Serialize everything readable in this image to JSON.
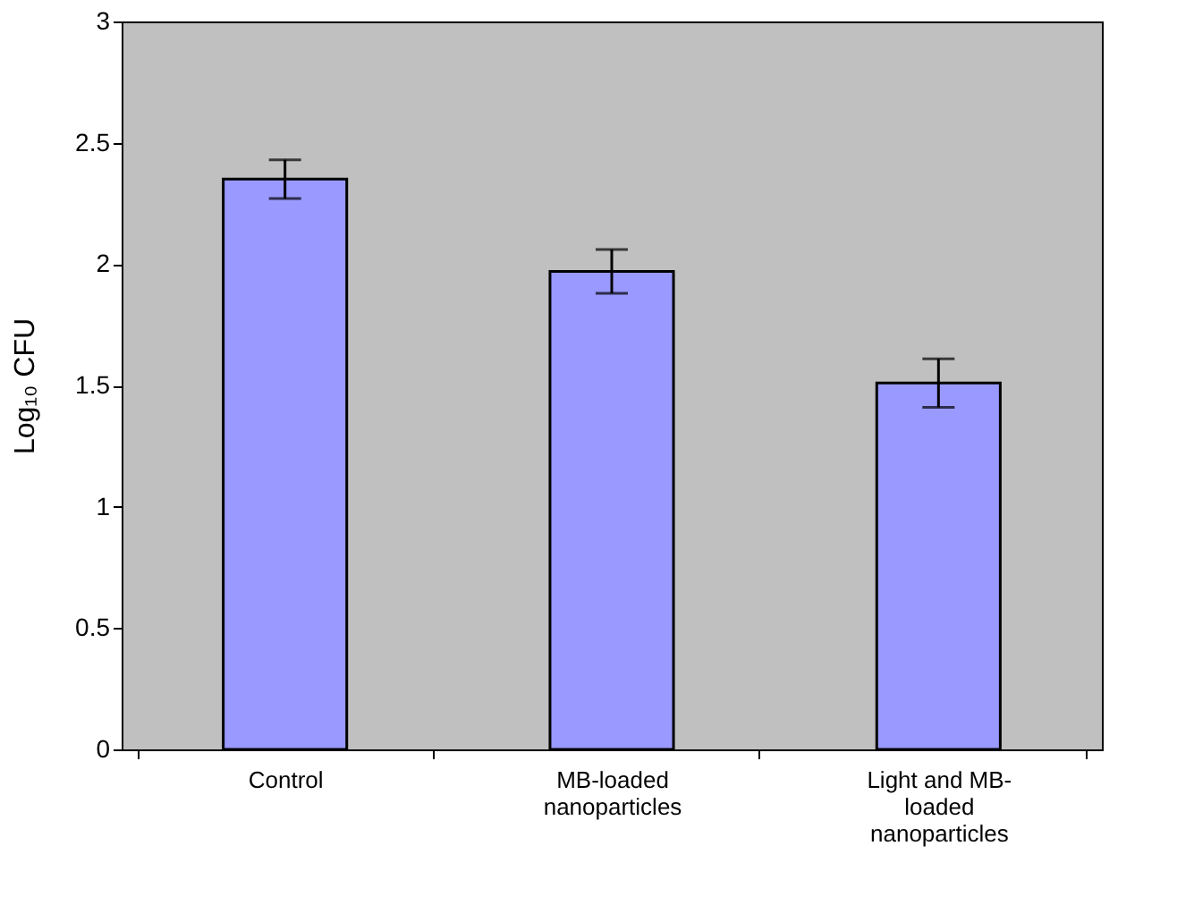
{
  "chart_data": {
    "type": "bar",
    "categories": [
      "Control",
      "MB-loaded nanoparticles",
      "Light and MB-loaded nanoparticles"
    ],
    "values": [
      2.35,
      1.97,
      1.51
    ],
    "errors": [
      0.08,
      0.09,
      0.1
    ],
    "color": "#9999ff",
    "ylabel": "Log₁₀ CFU",
    "ylim": [
      0,
      3
    ],
    "yticks": [
      0,
      0.5,
      1,
      1.5,
      2,
      2.5,
      3
    ],
    "grid": false
  }
}
